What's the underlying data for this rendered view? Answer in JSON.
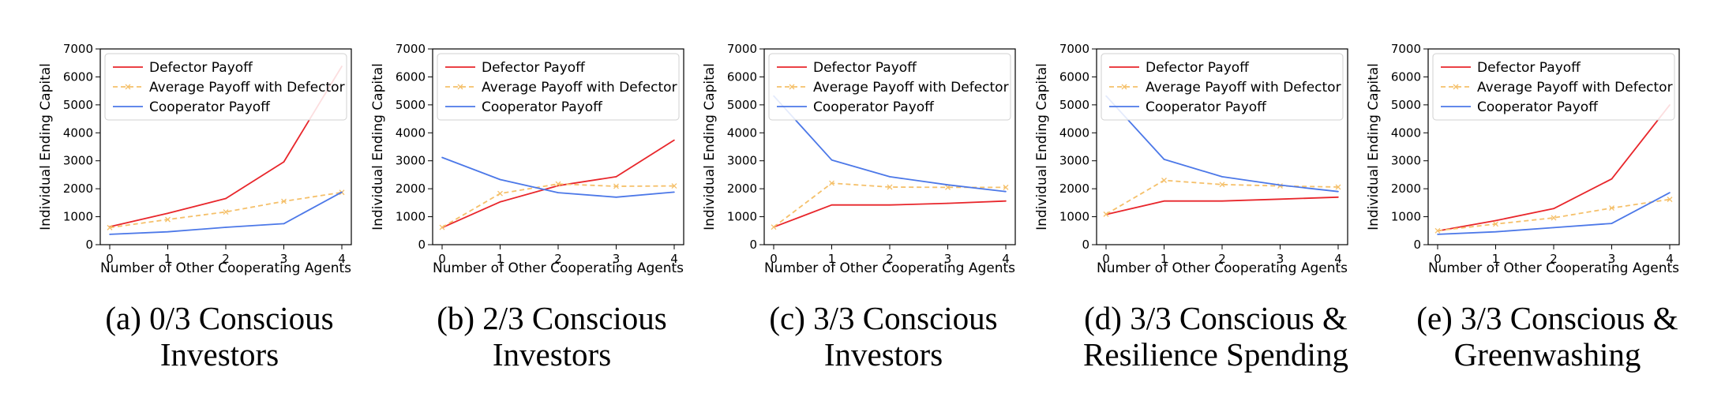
{
  "chart_data": [
    {
      "type": "line",
      "caption_lines": [
        "(a) 0/3 Conscious",
        "Investors"
      ],
      "xlabel": "Number of Other Cooperating Agents",
      "ylabel": "Individual Ending Capital",
      "x": [
        0,
        1,
        2,
        3,
        4
      ],
      "xticks": [
        "0",
        "1",
        "2",
        "3",
        "4"
      ],
      "ylim": [
        0,
        7000
      ],
      "yticks": [
        "0",
        "1000",
        "2000",
        "3000",
        "4000",
        "5000",
        "6000",
        "7000"
      ],
      "legend_position": "top-left",
      "series": [
        {
          "name": "Defector Payoff",
          "values": [
            640,
            1120,
            1650,
            2960,
            6380
          ],
          "color": "#e8262b",
          "style": "solid"
        },
        {
          "name": "Average Payoff with Defector",
          "values": [
            610,
            900,
            1170,
            1550,
            1870
          ],
          "color": "#f5c06a",
          "style": "dashed"
        },
        {
          "name": "Cooperator Payoff",
          "values": [
            370,
            460,
            620,
            750,
            1880
          ],
          "color": "#4c78e8",
          "style": "solid"
        }
      ]
    },
    {
      "type": "line",
      "caption_lines": [
        "(b) 2/3 Conscious",
        "Investors"
      ],
      "xlabel": "Number of Other Cooperating Agents",
      "ylabel": "Individual Ending Capital",
      "x": [
        0,
        1,
        2,
        3,
        4
      ],
      "xticks": [
        "0",
        "1",
        "2",
        "3",
        "4"
      ],
      "ylim": [
        0,
        7000
      ],
      "yticks": [
        "0",
        "1000",
        "2000",
        "3000",
        "4000",
        "5000",
        "6000",
        "7000"
      ],
      "legend_position": "top-left",
      "series": [
        {
          "name": "Defector Payoff",
          "values": [
            610,
            1530,
            2110,
            2430,
            3740
          ],
          "color": "#e8262b",
          "style": "solid"
        },
        {
          "name": "Average Payoff with Defector",
          "values": [
            620,
            1830,
            2170,
            2090,
            2100
          ],
          "color": "#f5c06a",
          "style": "dashed"
        },
        {
          "name": "Cooperator Payoff",
          "values": [
            3120,
            2330,
            1860,
            1700,
            1880
          ],
          "color": "#4c78e8",
          "style": "solid"
        }
      ]
    },
    {
      "type": "line",
      "caption_lines": [
        "(c) 3/3 Conscious",
        "Investors"
      ],
      "xlabel": "Number of Other Cooperating Agents",
      "ylabel": "Individual Ending Capital",
      "x": [
        0,
        1,
        2,
        3,
        4
      ],
      "xticks": [
        "0",
        "1",
        "2",
        "3",
        "4"
      ],
      "ylim": [
        0,
        7000
      ],
      "yticks": [
        "0",
        "1000",
        "2000",
        "3000",
        "4000",
        "5000",
        "6000",
        "7000"
      ],
      "legend_position": "top-left",
      "series": [
        {
          "name": "Defector Payoff",
          "values": [
            630,
            1420,
            1420,
            1480,
            1560
          ],
          "color": "#e8262b",
          "style": "solid"
        },
        {
          "name": "Average Payoff with Defector",
          "values": [
            630,
            2200,
            2060,
            2050,
            2050
          ],
          "color": "#f5c06a",
          "style": "dashed"
        },
        {
          "name": "Cooperator Payoff",
          "values": [
            5320,
            3030,
            2430,
            2140,
            1900
          ],
          "color": "#4c78e8",
          "style": "solid"
        }
      ]
    },
    {
      "type": "line",
      "caption_lines": [
        "(d) 3/3 Conscious &",
        "Resilience Spending"
      ],
      "xlabel": "Number of Other Cooperating Agents",
      "ylabel": "Individual Ending Capital",
      "x": [
        0,
        1,
        2,
        3,
        4
      ],
      "xticks": [
        "0",
        "1",
        "2",
        "3",
        "4"
      ],
      "ylim": [
        0,
        7000
      ],
      "yticks": [
        "0",
        "1000",
        "2000",
        "3000",
        "4000",
        "5000",
        "6000",
        "7000"
      ],
      "legend_position": "top-left",
      "series": [
        {
          "name": "Defector Payoff",
          "values": [
            1080,
            1560,
            1560,
            1630,
            1700
          ],
          "color": "#e8262b",
          "style": "solid"
        },
        {
          "name": "Average Payoff with Defector",
          "values": [
            1090,
            2300,
            2150,
            2100,
            2060
          ],
          "color": "#f5c06a",
          "style": "dashed"
        },
        {
          "name": "Cooperator Payoff",
          "values": [
            5320,
            3050,
            2430,
            2130,
            1900
          ],
          "color": "#4c78e8",
          "style": "solid"
        }
      ]
    },
    {
      "type": "line",
      "caption_lines": [
        "(e) 3/3 Conscious &",
        "Greenwashing"
      ],
      "xlabel": "Number of Other Cooperating Agents",
      "ylabel": "Individual Ending Capital",
      "x": [
        0,
        1,
        2,
        3,
        4
      ],
      "xticks": [
        "0",
        "1",
        "2",
        "3",
        "4"
      ],
      "ylim": [
        0,
        7000
      ],
      "yticks": [
        "0",
        "1000",
        "2000",
        "3000",
        "4000",
        "5000",
        "6000",
        "7000"
      ],
      "legend_position": "top-left",
      "series": [
        {
          "name": "Defector Payoff",
          "values": [
            490,
            860,
            1290,
            2350,
            5000
          ],
          "color": "#e8262b",
          "style": "solid"
        },
        {
          "name": "Average Payoff with Defector",
          "values": [
            500,
            740,
            960,
            1310,
            1620
          ],
          "color": "#f5c06a",
          "style": "dashed"
        },
        {
          "name": "Cooperator Payoff",
          "values": [
            370,
            460,
            610,
            760,
            1860
          ],
          "color": "#4c78e8",
          "style": "solid"
        }
      ]
    }
  ]
}
